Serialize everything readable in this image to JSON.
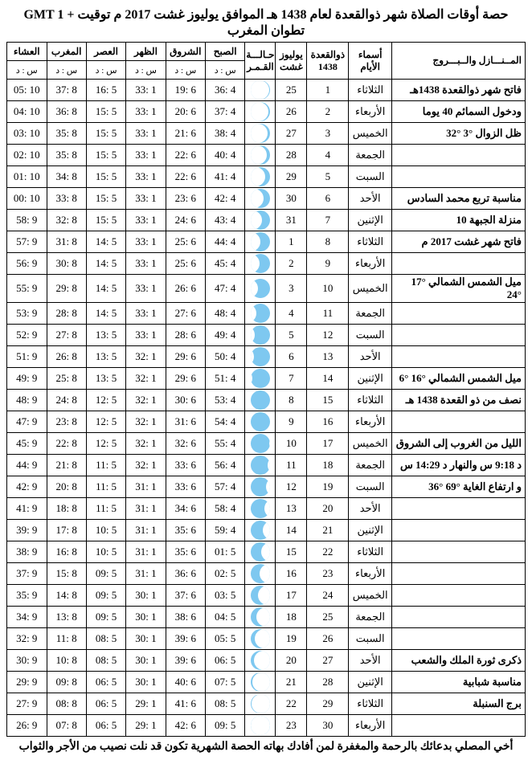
{
  "title": "حصة أوقات الصلاة شهر ذوالقعدة لعام 1438 هـ الموافق يوليوز غشت 2017 م توقيت + GMT 1 تطوان المغرب",
  "headers": {
    "notes": "المــنـــازل والــبـــروج",
    "dayname": "أسماء الأيام",
    "hijri": "ذوالقعدة 1438",
    "greg": "يوليوز غشت",
    "moon": "حـالـــة القـمـر",
    "fajr": "الصبح",
    "sunrise": "الشروق",
    "dhuhr": "الظهر",
    "asr": "العصر",
    "maghrib": "المغرب",
    "isha": "العشاء",
    "sd": "س : د"
  },
  "rows": [
    {
      "note": "فاتح شهر ذوالقعدة 1438هـ",
      "day": "الثلاثاء",
      "h": "1",
      "g": "25",
      "m": 0.02,
      "fajr": "36: 4",
      "sun": "19: 6",
      "dh": "33: 1",
      "asr": "16: 5",
      "mgh": "37: 8",
      "ish": "05: 10"
    },
    {
      "note": "ودخول السمائم 40 يوما",
      "day": "الأربعاء",
      "h": "2",
      "g": "26",
      "m": 0.06,
      "fajr": "37: 4",
      "sun": "20: 6",
      "dh": "33: 1",
      "asr": "15: 5",
      "mgh": "36: 8",
      "ish": "04: 10"
    },
    {
      "note": "ظل الزوال °3  °32",
      "day": "الخميس",
      "h": "3",
      "g": "27",
      "m": 0.12,
      "fajr": "38: 4",
      "sun": "21: 6",
      "dh": "33: 1",
      "asr": "15: 5",
      "mgh": "35: 8",
      "ish": "03: 10"
    },
    {
      "note": "",
      "day": "الجمعة",
      "h": "4",
      "g": "28",
      "m": 0.18,
      "fajr": "40: 4",
      "sun": "22: 6",
      "dh": "33: 1",
      "asr": "15: 5",
      "mgh": "35: 8",
      "ish": "02: 10"
    },
    {
      "note": "",
      "day": "السبت",
      "h": "5",
      "g": "29",
      "m": 0.25,
      "fajr": "41: 4",
      "sun": "22: 6",
      "dh": "33: 1",
      "asr": "15: 5",
      "mgh": "34: 8",
      "ish": "01: 10"
    },
    {
      "note": "مناسبة تربع محمد السادس",
      "day": "الأحد",
      "h": "6",
      "g": "30",
      "m": 0.32,
      "fajr": "42: 4",
      "sun": "23: 6",
      "dh": "33: 1",
      "asr": "15: 5",
      "mgh": "33: 8",
      "ish": "00: 10"
    },
    {
      "note": "منزلة الجبهة 10",
      "day": "الإثنين",
      "h": "7",
      "g": "31",
      "m": 0.4,
      "fajr": "43: 4",
      "sun": "24: 6",
      "dh": "33: 1",
      "asr": "15: 5",
      "mgh": "32: 8",
      "ish": "58: 9"
    },
    {
      "note": "فاتح شهر غشت 2017 م",
      "day": "الثلاثاء",
      "h": "8",
      "g": "1",
      "m": 0.48,
      "fajr": "44: 4",
      "sun": "25: 6",
      "dh": "33: 1",
      "asr": "14: 5",
      "mgh": "31: 8",
      "ish": "57: 9"
    },
    {
      "note": "",
      "day": "الأربعاء",
      "h": "9",
      "g": "2",
      "m": 0.55,
      "fajr": "45: 4",
      "sun": "25: 6",
      "dh": "33: 1",
      "asr": "14: 5",
      "mgh": "30: 8",
      "ish": "56: 9"
    },
    {
      "note": "ميل الشمس الشمالي °17 °24",
      "day": "الخميس",
      "h": "10",
      "g": "3",
      "m": 0.63,
      "fajr": "47: 4",
      "sun": "26: 6",
      "dh": "33: 1",
      "asr": "14: 5",
      "mgh": "29: 8",
      "ish": "55: 9"
    },
    {
      "note": "",
      "day": "الجمعة",
      "h": "11",
      "g": "4",
      "m": 0.7,
      "fajr": "48: 4",
      "sun": "27: 6",
      "dh": "33: 1",
      "asr": "14: 5",
      "mgh": "28: 8",
      "ish": "53: 9"
    },
    {
      "note": "",
      "day": "السبت",
      "h": "12",
      "g": "5",
      "m": 0.78,
      "fajr": "49: 4",
      "sun": "28: 6",
      "dh": "33: 1",
      "asr": "13: 5",
      "mgh": "27: 8",
      "ish": "52: 9"
    },
    {
      "note": "",
      "day": "الأحد",
      "h": "13",
      "g": "6",
      "m": 0.85,
      "fajr": "50: 4",
      "sun": "29: 6",
      "dh": "32: 1",
      "asr": "13: 5",
      "mgh": "26: 8",
      "ish": "51: 9"
    },
    {
      "note": "ميل الشمس الشمالي °16 °6",
      "day": "الإثنين",
      "h": "14",
      "g": "7",
      "m": 0.92,
      "fajr": "51: 4",
      "sun": "29: 6",
      "dh": "32: 1",
      "asr": "13: 5",
      "mgh": "25: 8",
      "ish": "49: 9"
    },
    {
      "note": "نصف من ذو القعدة 1438 هـ",
      "day": "الثلاثاء",
      "h": "15",
      "g": "8",
      "m": 0.98,
      "fajr": "53: 4",
      "sun": "30: 6",
      "dh": "32: 1",
      "asr": "12: 5",
      "mgh": "24: 8",
      "ish": "48: 9"
    },
    {
      "note": "",
      "day": "الأربعاء",
      "h": "16",
      "g": "9",
      "m": 1.0,
      "fajr": "54: 4",
      "sun": "31: 6",
      "dh": "32: 1",
      "asr": "12: 5",
      "mgh": "23: 8",
      "ish": "47: 9"
    },
    {
      "note": "الليل من الغروب إلى الشروق",
      "day": "الخميس",
      "h": "17",
      "g": "10",
      "m": -0.95,
      "fajr": "55: 4",
      "sun": "32: 6",
      "dh": "32: 1",
      "asr": "12: 5",
      "mgh": "22: 8",
      "ish": "45: 9"
    },
    {
      "note": "د 9:18 س والنهار د 14:29 س",
      "day": "الجمعة",
      "h": "18",
      "g": "11",
      "m": -0.88,
      "fajr": "56: 4",
      "sun": "33: 6",
      "dh": "32: 1",
      "asr": "11: 5",
      "mgh": "21: 8",
      "ish": "44: 9"
    },
    {
      "note": "و ارتفاع الغاية °69 °36",
      "day": "السبت",
      "h": "19",
      "g": "12",
      "m": -0.8,
      "fajr": "57: 4",
      "sun": "33: 6",
      "dh": "31: 1",
      "asr": "11: 5",
      "mgh": "20: 8",
      "ish": "42: 9"
    },
    {
      "note": "",
      "day": "الأحد",
      "h": "20",
      "g": "13",
      "m": -0.72,
      "fajr": "58: 4",
      "sun": "34: 6",
      "dh": "31: 1",
      "asr": "11: 5",
      "mgh": "18: 8",
      "ish": "41: 9"
    },
    {
      "note": "",
      "day": "الإثنين",
      "h": "21",
      "g": "14",
      "m": -0.63,
      "fajr": "59: 4",
      "sun": "35: 6",
      "dh": "31: 1",
      "asr": "10: 5",
      "mgh": "17: 8",
      "ish": "39: 9"
    },
    {
      "note": "",
      "day": "الثلاثاء",
      "h": "22",
      "g": "15",
      "m": -0.55,
      "fajr": "01: 5",
      "sun": "35: 6",
      "dh": "31: 1",
      "asr": "10: 5",
      "mgh": "16: 8",
      "ish": "38: 9"
    },
    {
      "note": "",
      "day": "الأربعاء",
      "h": "23",
      "g": "16",
      "m": -0.47,
      "fajr": "02: 5",
      "sun": "36: 6",
      "dh": "31: 1",
      "asr": "09: 5",
      "mgh": "15: 8",
      "ish": "37: 9"
    },
    {
      "note": "",
      "day": "الخميس",
      "h": "24",
      "g": "17",
      "m": -0.38,
      "fajr": "03: 5",
      "sun": "37: 6",
      "dh": "30: 1",
      "asr": "09: 5",
      "mgh": "14: 8",
      "ish": "35: 9"
    },
    {
      "note": "",
      "day": "الجمعة",
      "h": "25",
      "g": "18",
      "m": -0.3,
      "fajr": "04: 5",
      "sun": "38: 6",
      "dh": "30: 1",
      "asr": "09: 5",
      "mgh": "13: 8",
      "ish": "34: 9"
    },
    {
      "note": "",
      "day": "السبت",
      "h": "26",
      "g": "19",
      "m": -0.22,
      "fajr": "05: 5",
      "sun": "39: 6",
      "dh": "30: 1",
      "asr": "08: 5",
      "mgh": "11: 8",
      "ish": "32: 9"
    },
    {
      "note": "ذكرى ثورة الملك والشعب",
      "day": "الأحد",
      "h": "27",
      "g": "20",
      "m": -0.15,
      "fajr": "06: 5",
      "sun": "39: 6",
      "dh": "30: 1",
      "asr": "08: 5",
      "mgh": "10: 8",
      "ish": "30: 9"
    },
    {
      "note": "مناسبة شبابية",
      "day": "الإثنين",
      "h": "28",
      "g": "21",
      "m": -0.08,
      "fajr": "07: 5",
      "sun": "40: 6",
      "dh": "30: 1",
      "asr": "06: 5",
      "mgh": "09: 8",
      "ish": "29: 9"
    },
    {
      "note": "برج السنبلة",
      "day": "الثلاثاء",
      "h": "29",
      "g": "22",
      "m": -0.03,
      "fajr": "08: 5",
      "sun": "41: 6",
      "dh": "29: 1",
      "asr": "06: 5",
      "mgh": "08: 8",
      "ish": "27: 9"
    },
    {
      "note": "",
      "day": "الأربعاء",
      "h": "30",
      "g": "23",
      "m": -0.0,
      "fajr": "09: 5",
      "sun": "42: 6",
      "dh": "29: 1",
      "asr": "06: 5",
      "mgh": "07: 8",
      "ish": "26: 9"
    }
  ],
  "footer": "أخي المصلي بدعائك بالرحمة والمغفرة لمن أفادك بهاته الحصة الشهرية تكون قد نلت نصيب من الأجر والثواب",
  "colors": {
    "moon_bg": "#7ec8f0",
    "border": "#000000",
    "text": "#000000"
  }
}
